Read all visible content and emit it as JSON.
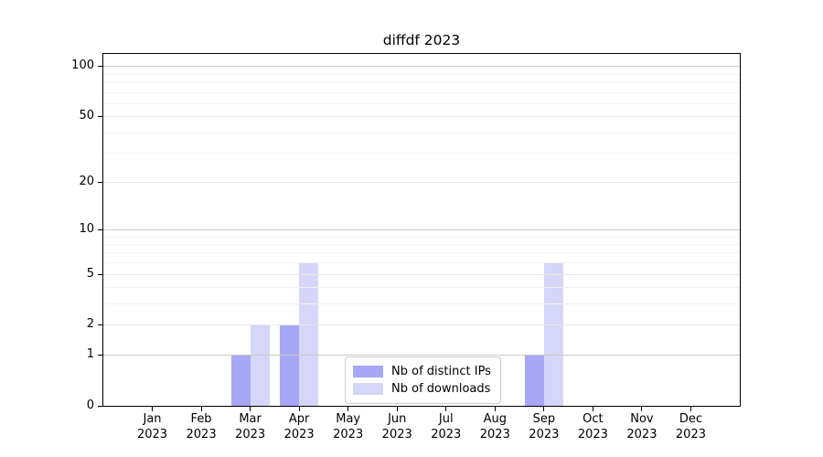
{
  "chart_data": {
    "type": "bar",
    "title": "diffdf 2023",
    "categories": [
      "Jan 2023",
      "Feb 2023",
      "Mar 2023",
      "Apr 2023",
      "May 2023",
      "Jun 2023",
      "Jul 2023",
      "Aug 2023",
      "Sep 2023",
      "Oct 2023",
      "Nov 2023",
      "Dec 2023"
    ],
    "series": [
      {
        "name": "Nb of distinct IPs",
        "color": "rgba(120,120,240,0.65)",
        "values": [
          0,
          0,
          1,
          2,
          0,
          0,
          0,
          0,
          1,
          0,
          0,
          0
        ]
      },
      {
        "name": "Nb of downloads",
        "color": "rgba(120,120,240,0.30)",
        "values": [
          0,
          0,
          2,
          6,
          0,
          0,
          0,
          0,
          6,
          0,
          0,
          0
        ]
      }
    ],
    "y_scale": "log10(1+x)",
    "ylim": [
      0,
      118
    ],
    "y_axis": {
      "ticks": [
        0,
        1,
        2,
        5,
        10,
        20,
        50,
        100
      ],
      "major_gridlines": [
        1,
        2,
        5,
        10,
        20,
        50,
        100
      ],
      "emphasized_gridlines": [
        1,
        10,
        100
      ],
      "minor_gridlines": [
        3,
        4,
        6,
        7,
        8,
        9,
        30,
        40,
        60,
        70,
        80,
        90
      ]
    },
    "grid": true,
    "legend_position": "inside-bottom-center"
  },
  "colors": {
    "bar_distinct_ips_rendered": "#a8a8f6",
    "bar_downloads_rendered": "#d7d7fb",
    "grid_emphasized": "#c9c9c9",
    "grid_major": "#e7e7e7",
    "grid_minor": "#f2f2f2",
    "axis": "#000000",
    "background": "#ffffff",
    "legend_border": "#cccccc"
  }
}
